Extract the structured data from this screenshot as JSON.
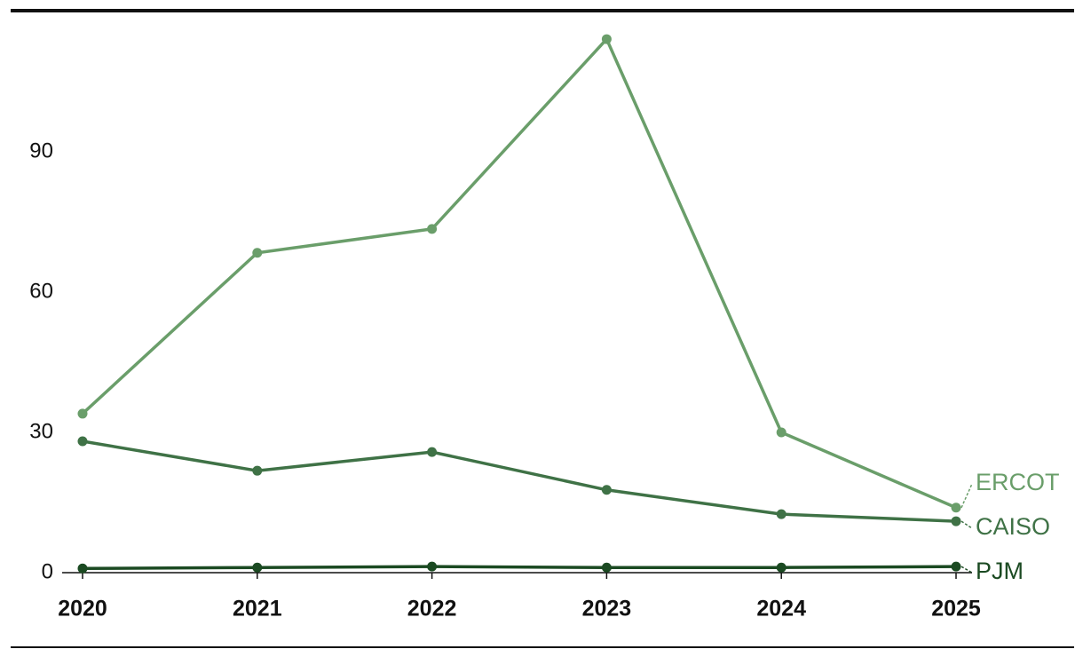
{
  "chart_data": {
    "type": "line",
    "x": [
      2020,
      2021,
      2022,
      2023,
      2024,
      2025
    ],
    "series": [
      {
        "name": "ERCOT",
        "color": "#6a9e6a",
        "values": [
          34,
          68.4,
          73.5,
          114.1,
          30,
          13.9
        ]
      },
      {
        "name": "CAISO",
        "color": "#3f7246",
        "values": [
          28.1,
          21.8,
          25.8,
          17.7,
          12.5,
          11
        ]
      },
      {
        "name": "PJM",
        "color": "#1b4a22",
        "values": [
          0.9,
          1.1,
          1.3,
          1.1,
          1.1,
          1.3
        ]
      }
    ],
    "xlim": [
      2020,
      2025
    ],
    "xticks": [
      2020,
      2021,
      2022,
      2023,
      2024,
      2025
    ],
    "ylim": [
      0,
      115
    ],
    "yticks": [
      0,
      30,
      60,
      90
    ],
    "grid": false
  }
}
